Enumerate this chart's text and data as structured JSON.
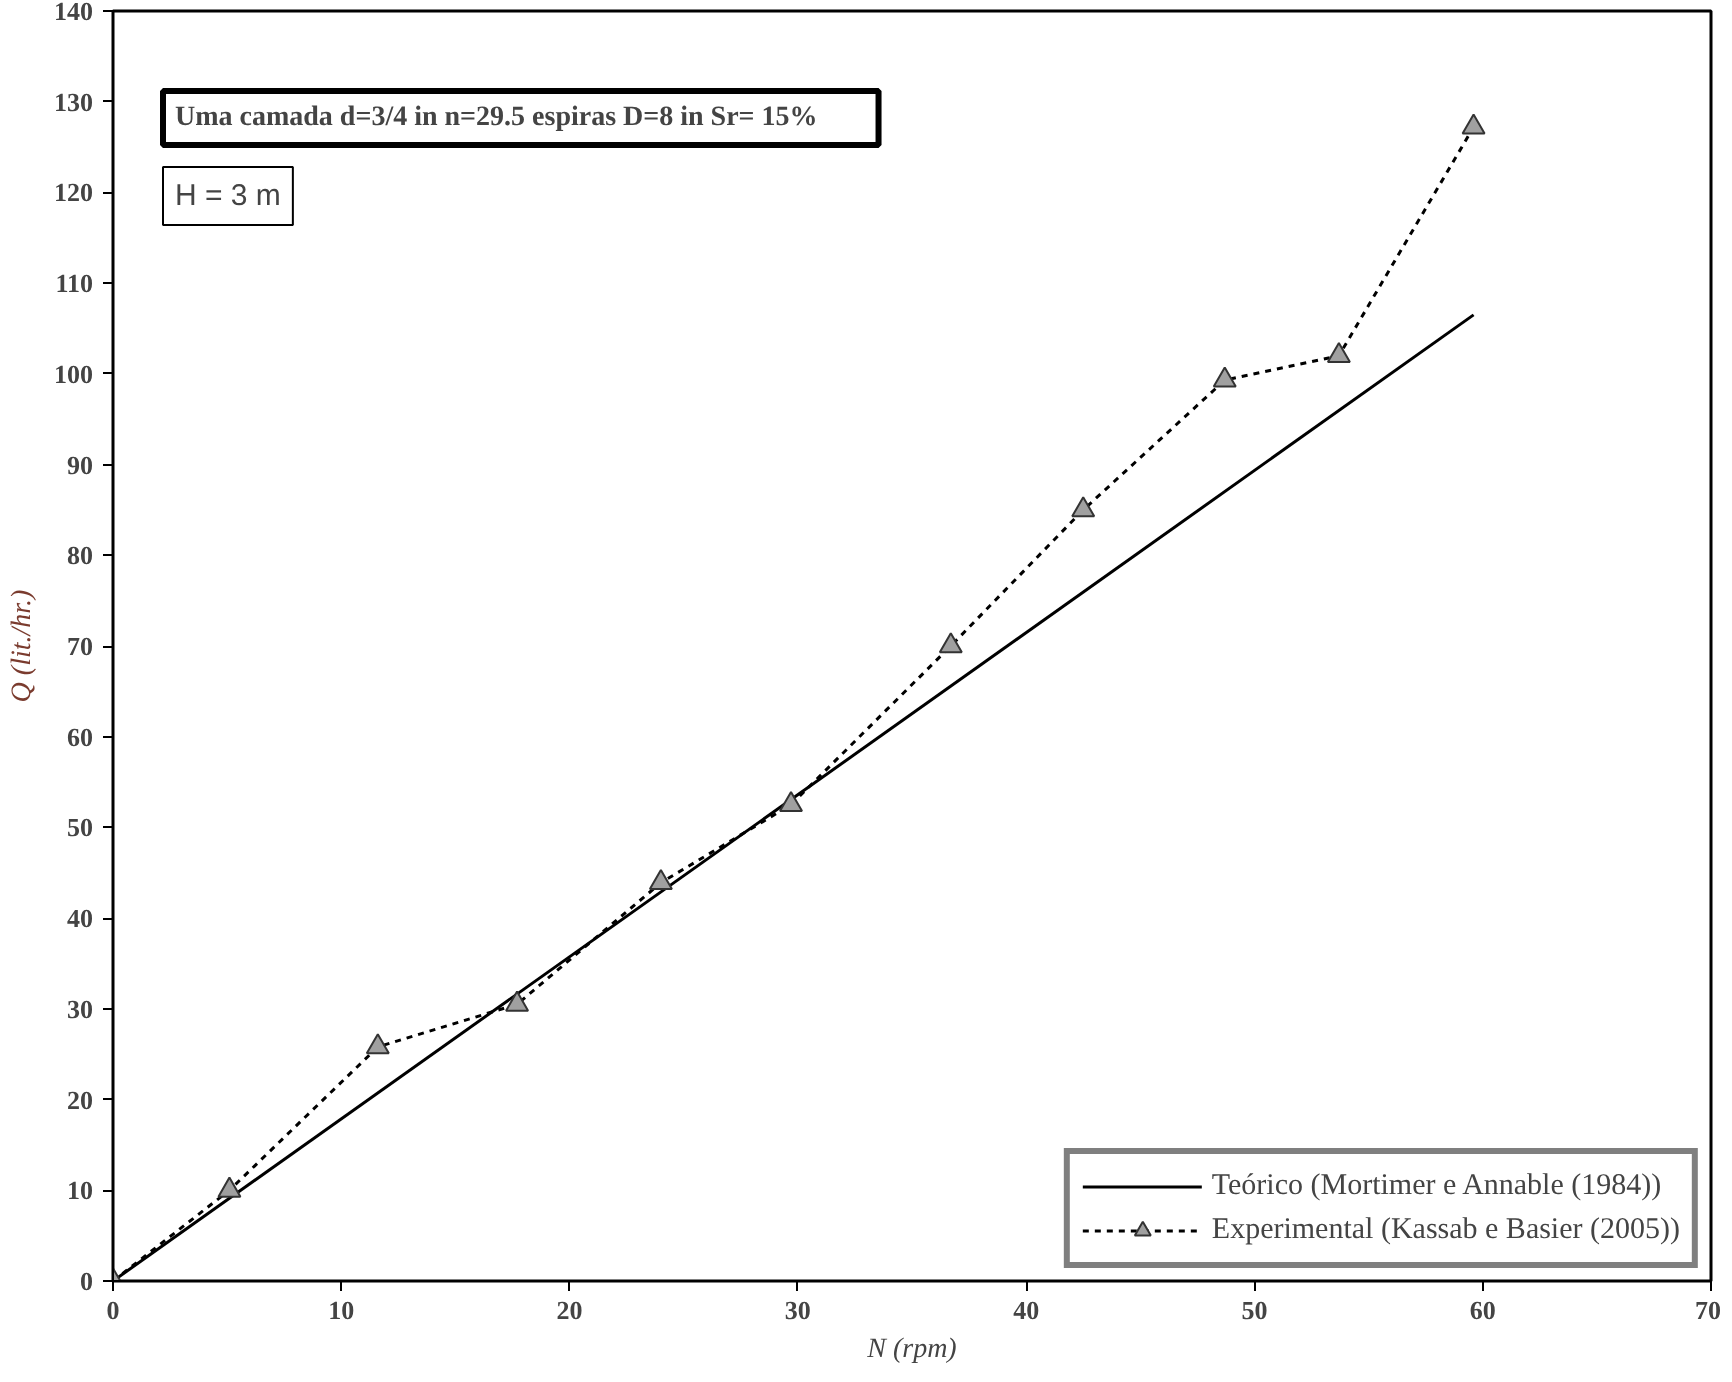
{
  "chart_data": {
    "type": "line",
    "xlabel": "N (rpm)",
    "ylabel": "Q (lit./hr.)",
    "annotations": [
      "Uma camada   d=3/4 in   n=29.5 espiras   D=8 in  Sr= 15%",
      "H = 3 m"
    ],
    "xlim": [
      0,
      70
    ],
    "ylim": [
      0,
      140
    ],
    "xticks": [
      0,
      10,
      20,
      30,
      40,
      50,
      60,
      70
    ],
    "yticks": [
      0,
      10,
      20,
      30,
      40,
      50,
      60,
      70,
      80,
      90,
      100,
      110,
      120,
      130,
      140
    ],
    "grid": false,
    "legend": "bottom right",
    "series": [
      {
        "name": "Teórico (Mortimer e Annable (1984))",
        "color": "#000000",
        "x": [
          0,
          59.6
        ],
        "values": [
          0,
          106.5
        ],
        "line_style": "solid",
        "marker": "none"
      },
      {
        "name": "Experimental (Kassab e Basier (2005))",
        "color": "#000000",
        "x": [
          0,
          5.1,
          11.6,
          17.7,
          24,
          29.7,
          36.7,
          42.5,
          48.7,
          53.7,
          59.6
        ],
        "values": [
          0,
          10,
          25.8,
          30.5,
          43.9,
          52.5,
          70,
          85,
          99.3,
          102,
          127.2
        ],
        "line_style": "dotted",
        "marker": "triangle"
      }
    ]
  }
}
